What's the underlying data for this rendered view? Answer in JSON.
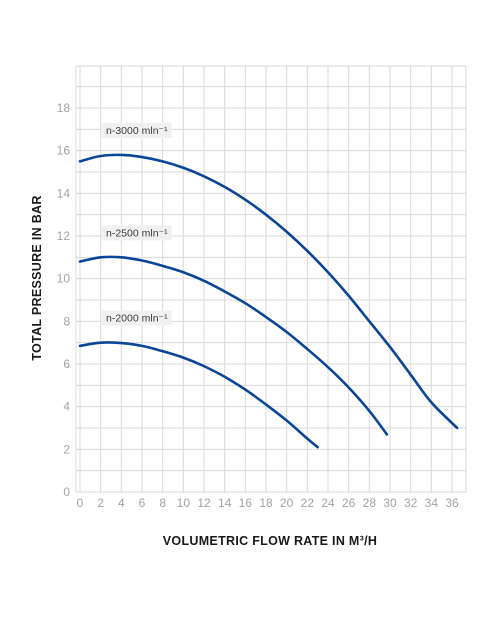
{
  "chart_data": {
    "type": "line",
    "xlabel": "VOLUMETRIC FLOW RATE IN M³/H",
    "ylabel": "TOTAL PRESSURE IN BAR",
    "xlim": [
      0,
      37
    ],
    "ylim": [
      0,
      20
    ],
    "xticks": [
      "0",
      "2",
      "4",
      "6",
      "8",
      "10",
      "12",
      "14",
      "16",
      "18",
      "20",
      "22",
      "24",
      "26",
      "28",
      "30",
      "32",
      "34",
      "36"
    ],
    "yticks": [
      "0",
      "2",
      "4",
      "6",
      "8",
      "10",
      "12",
      "14",
      "16",
      "18"
    ],
    "grid": true,
    "colors": {
      "line": "#0b4597",
      "grid": "#d9d9d9",
      "tick": "#a3a3a3"
    },
    "series": [
      {
        "name": "n-3000 mln⁻¹",
        "x": [
          0,
          2,
          4,
          6,
          8,
          10,
          12,
          14,
          16,
          18,
          20,
          22,
          24,
          26,
          28,
          30,
          32,
          34,
          36.5
        ],
        "y": [
          15.5,
          15.75,
          15.8,
          15.7,
          15.5,
          15.2,
          14.8,
          14.3,
          13.7,
          13.0,
          12.2,
          11.3,
          10.3,
          9.2,
          8.0,
          6.8,
          5.5,
          4.2,
          3.0
        ]
      },
      {
        "name": "n-2500 mln⁻¹",
        "x": [
          0,
          2,
          4,
          6,
          8,
          10,
          12,
          14,
          16,
          18,
          20,
          22,
          24,
          26,
          28,
          29.7
        ],
        "y": [
          10.8,
          11.0,
          11.0,
          10.85,
          10.6,
          10.3,
          9.9,
          9.4,
          8.85,
          8.2,
          7.5,
          6.7,
          5.85,
          4.9,
          3.8,
          2.7
        ]
      },
      {
        "name": "n-2000 mln⁻¹",
        "x": [
          0,
          2,
          4,
          6,
          8,
          10,
          12,
          14,
          16,
          18,
          20,
          22,
          23
        ],
        "y": [
          6.85,
          7.0,
          6.98,
          6.85,
          6.6,
          6.3,
          5.9,
          5.4,
          4.8,
          4.1,
          3.35,
          2.5,
          2.1
        ]
      }
    ]
  }
}
